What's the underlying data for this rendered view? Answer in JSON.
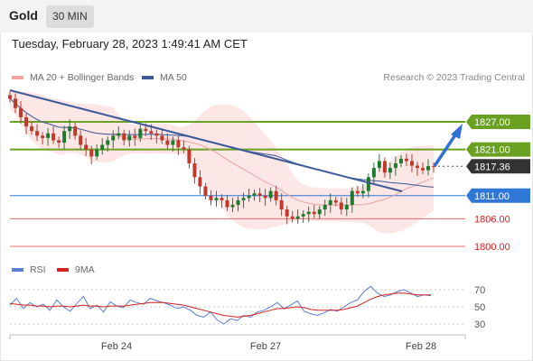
{
  "header": {
    "symbol": "Gold",
    "timeframe": "30 MIN"
  },
  "timestamp": "Tuesday, February 28, 2023 1:49:41 AM CET",
  "legend": {
    "bb_label": "MA 20 + Bollinger Bands",
    "ma50_label": "MA 50",
    "copyright": "Research © 2023 Trading Central",
    "bb_color": "#f5a3a3",
    "ma50_color": "#3c5a99"
  },
  "rsi_legend": {
    "rsi_label": "RSI",
    "ma_label": "9MA",
    "rsi_color": "#5b7fd6",
    "ma_color": "#d62020"
  },
  "colors": {
    "up": "#1e7b2e",
    "down": "#c0392b",
    "resistance": "#6aa121",
    "pivot": "#2f78d8",
    "support": "#e46a6a",
    "trend": "#3c5a99"
  },
  "chart_data": [
    {
      "type": "candlestick",
      "x_tick_labels": [
        "Feb 24",
        "Feb 27",
        "Feb 28"
      ],
      "ylim": [
        1797,
        1833
      ],
      "price_levels": [
        {
          "value": 1827.0,
          "label": "1827.00",
          "kind": "resistance"
        },
        {
          "value": 1821.0,
          "label": "1821.00",
          "kind": "resistance"
        },
        {
          "value": 1817.36,
          "label": "1817.36",
          "kind": "last"
        },
        {
          "value": 1811.0,
          "label": "1811.00",
          "kind": "pivot"
        },
        {
          "value": 1806.0,
          "label": "1806.00",
          "kind": "support"
        },
        {
          "value": 1800.0,
          "label": "1800.00",
          "kind": "support"
        }
      ],
      "closes": [
        1832,
        1830,
        1828,
        1826,
        1825,
        1824,
        1823.5,
        1824.5,
        1823,
        1822.5,
        1825,
        1826,
        1824,
        1822,
        1821,
        1819.5,
        1821,
        1822,
        1823,
        1824,
        1824.5,
        1823,
        1824,
        1823.5,
        1825.5,
        1825,
        1824.5,
        1824,
        1823,
        1822,
        1823,
        1821.5,
        1821,
        1818,
        1815,
        1813,
        1811,
        1810,
        1810.5,
        1810,
        1808.5,
        1809,
        1810,
        1810.5,
        1811,
        1811.5,
        1811,
        1810.5,
        1812,
        1810,
        1808,
        1806.5,
        1806,
        1806.5,
        1807,
        1807.5,
        1807,
        1808,
        1809,
        1810,
        1809.5,
        1808,
        1809,
        1812,
        1811.5,
        1812,
        1815,
        1817,
        1818.5,
        1816,
        1817,
        1818,
        1819,
        1818.5,
        1817.5,
        1817,
        1816.5,
        1817.4,
        1817.36
      ]
    },
    {
      "type": "line",
      "title": "RSI",
      "x_tick_labels": [
        "Feb 24",
        "Feb 27",
        "Feb 28"
      ],
      "y_tick_labels": [
        "70",
        "50",
        "30"
      ],
      "ylim": [
        20,
        80
      ],
      "series": [
        {
          "name": "RSI",
          "values": [
            52,
            60,
            48,
            55,
            50,
            53,
            46,
            58,
            50,
            45,
            54,
            62,
            48,
            52,
            44,
            56,
            51,
            49,
            58,
            55,
            53,
            60,
            57,
            55,
            52,
            48,
            50,
            46,
            40,
            38,
            44,
            35,
            30,
            36,
            34,
            40,
            38,
            44,
            46,
            50,
            55,
            48,
            52,
            57,
            45,
            42,
            40,
            43,
            47,
            45,
            50,
            55,
            58,
            68,
            74,
            66,
            62,
            64,
            68,
            70,
            66,
            62,
            64,
            63
          ]
        },
        {
          "name": "9MA",
          "values": [
            54,
            53,
            52,
            52,
            51,
            51,
            50,
            51,
            51,
            50,
            51,
            52,
            51,
            51,
            50,
            51,
            51,
            51,
            52,
            53,
            54,
            55,
            55,
            55,
            54,
            53,
            52,
            50,
            48,
            46,
            44,
            42,
            40,
            39,
            38,
            39,
            40,
            42,
            44,
            46,
            48,
            48,
            49,
            50,
            49,
            47,
            46,
            46,
            46,
            46,
            47,
            49,
            51,
            55,
            59,
            62,
            64,
            65,
            66,
            66,
            65,
            64,
            64,
            64
          ]
        }
      ]
    }
  ]
}
